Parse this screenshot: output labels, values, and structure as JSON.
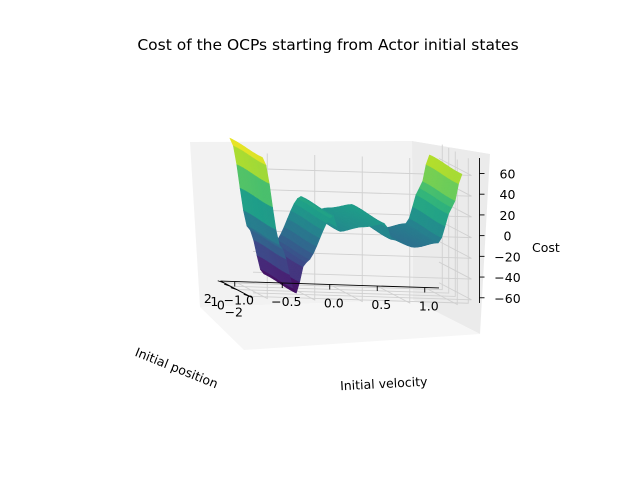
{
  "chart_data": {
    "type": "surface3d",
    "title": "Cost of the OCPs starting from Actor initial states",
    "xlabel": "Initial position",
    "ylabel": "Initial velocity",
    "zlabel": "Cost",
    "xlim": [
      -2.5,
      2.5
    ],
    "ylim": [
      -1.15,
      1.15
    ],
    "zlim": [
      -65,
      75
    ],
    "x_ticks": [
      -2,
      0,
      1,
      2
    ],
    "y_ticks": [
      -1.0,
      -0.5,
      0.0,
      0.5,
      1.0
    ],
    "z_ticks": [
      -60,
      -40,
      -20,
      0,
      20,
      40,
      60
    ],
    "colormap": "viridis",
    "grid": true,
    "surface_profile": {
      "velocity": [
        -1.05,
        -0.85,
        -0.7,
        -0.6,
        -0.3,
        -0.25,
        0.0,
        0.25,
        0.3,
        0.55,
        0.8,
        0.95,
        1.05
      ],
      "cost": [
        72,
        -15,
        -58,
        -28,
        18,
        3,
        8,
        12,
        -3,
        -10,
        -5,
        30,
        62
      ]
    }
  }
}
